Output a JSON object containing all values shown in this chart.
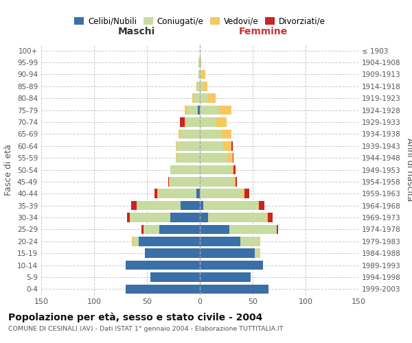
{
  "age_groups": [
    "0-4",
    "5-9",
    "10-14",
    "15-19",
    "20-24",
    "25-29",
    "30-34",
    "35-39",
    "40-44",
    "45-49",
    "50-54",
    "55-59",
    "60-64",
    "65-69",
    "70-74",
    "75-79",
    "80-84",
    "85-89",
    "90-94",
    "95-99",
    "100+"
  ],
  "birth_years": [
    "1999-2003",
    "1994-1998",
    "1989-1993",
    "1984-1988",
    "1979-1983",
    "1974-1978",
    "1969-1973",
    "1964-1968",
    "1959-1963",
    "1954-1958",
    "1949-1953",
    "1944-1948",
    "1939-1943",
    "1934-1938",
    "1929-1933",
    "1924-1928",
    "1919-1923",
    "1914-1918",
    "1909-1913",
    "1904-1908",
    "≤ 1903"
  ],
  "males": {
    "celibi": [
      70,
      47,
      70,
      52,
      58,
      38,
      28,
      18,
      3,
      0,
      0,
      0,
      0,
      0,
      0,
      2,
      0,
      0,
      0,
      0,
      0
    ],
    "coniugati": [
      0,
      0,
      0,
      0,
      5,
      15,
      38,
      42,
      36,
      28,
      28,
      22,
      22,
      18,
      13,
      10,
      6,
      2,
      1,
      1,
      0
    ],
    "vedovi": [
      0,
      0,
      0,
      0,
      1,
      0,
      0,
      0,
      1,
      1,
      0,
      1,
      1,
      2,
      1,
      2,
      1,
      1,
      0,
      0,
      0
    ],
    "divorziati": [
      0,
      0,
      0,
      0,
      0,
      2,
      3,
      5,
      3,
      1,
      0,
      0,
      0,
      0,
      5,
      0,
      0,
      0,
      0,
      0,
      0
    ]
  },
  "females": {
    "nubili": [
      65,
      48,
      60,
      52,
      38,
      28,
      8,
      3,
      0,
      0,
      0,
      0,
      0,
      0,
      0,
      0,
      0,
      0,
      0,
      0,
      0
    ],
    "coniugate": [
      0,
      0,
      0,
      5,
      18,
      45,
      55,
      52,
      40,
      32,
      30,
      26,
      22,
      20,
      15,
      18,
      8,
      3,
      2,
      0,
      0
    ],
    "vedove": [
      0,
      0,
      0,
      0,
      1,
      0,
      1,
      1,
      2,
      2,
      2,
      5,
      8,
      10,
      10,
      12,
      7,
      4,
      3,
      1,
      0
    ],
    "divorziate": [
      0,
      0,
      0,
      0,
      0,
      1,
      5,
      5,
      5,
      1,
      2,
      1,
      1,
      0,
      0,
      0,
      0,
      0,
      0,
      0,
      0
    ]
  },
  "colors": {
    "celibi_nubili": "#3a6fa8",
    "coniugati": "#c8dba0",
    "vedovi": "#f5c860",
    "divorziati": "#cc2222"
  },
  "xlim": 150,
  "title": "Popolazione per età, sesso e stato civile - 2004",
  "subtitle": "COMUNE DI CESINALI (AV) - Dati ISTAT 1° gennaio 2004 - Elaborazione TUTTITALIA.IT",
  "xlabel_left": "Maschi",
  "xlabel_right": "Femmine",
  "ylabel_left": "Fasce di età",
  "ylabel_right": "Anni di nascita",
  "legend_labels": [
    "Celibi/Nubili",
    "Coniugati/e",
    "Vedovi/e",
    "Divorziati/e"
  ],
  "background_color": "#ffffff",
  "grid_color": "#cccccc"
}
